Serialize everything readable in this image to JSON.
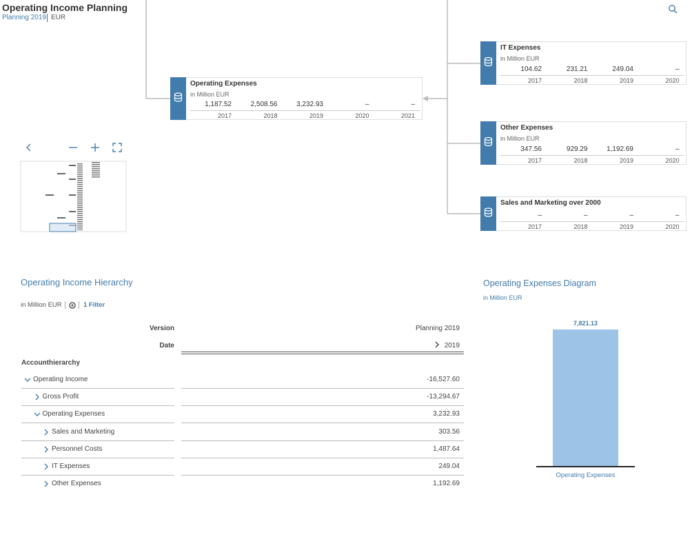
{
  "header": {
    "title": "Operating Income Planning",
    "version": "Planning 2019",
    "currency": "EUR"
  },
  "nodes": [
    {
      "title": "Operating Expenses",
      "unit": "in Million EUR",
      "values": [
        "1,187.52",
        "2,508.56",
        "3,232.93",
        "–",
        "–"
      ],
      "years": [
        "2017",
        "2018",
        "2019",
        "2020",
        "2021"
      ]
    },
    {
      "title": "IT Expenses",
      "unit": "in Million EUR",
      "values": [
        "104.62",
        "231.21",
        "249.04",
        "–"
      ],
      "years": [
        "2017",
        "2018",
        "2019",
        "2020"
      ]
    },
    {
      "title": "Other Expenses",
      "unit": "in Million EUR",
      "values": [
        "347.56",
        "929.29",
        "1,192.69",
        "–"
      ],
      "years": [
        "2017",
        "2018",
        "2019",
        "2020"
      ]
    },
    {
      "title": "Sales and Marketing over 2000",
      "values": [
        "–",
        "–",
        "–",
        "–"
      ],
      "years": [
        "2017",
        "2018",
        "2019",
        "2020"
      ]
    }
  ],
  "table": {
    "title": "Operating Income Hierarchy",
    "unit": "in Million EUR",
    "filter": "1 Filter",
    "header_rows": [
      [
        "Version",
        "Planning 2019"
      ],
      [
        "Date",
        "2019"
      ]
    ],
    "dimension": "Accounthierarchy",
    "rows": [
      {
        "label": "Operating Income",
        "value": "-16,527.60",
        "level": 0,
        "expanded": true
      },
      {
        "label": "Gross Profit",
        "value": "-13,294.67",
        "level": 1,
        "expanded": false
      },
      {
        "label": "Operating Expenses",
        "value": "3,232.93",
        "level": 1,
        "expanded": true
      },
      {
        "label": "Sales and Marketing",
        "value": "303.56",
        "level": 2,
        "expanded": false
      },
      {
        "label": "Personnel Costs",
        "value": "1,487.64",
        "level": 2,
        "expanded": false
      },
      {
        "label": "IT Expenses",
        "value": "249.04",
        "level": 2,
        "expanded": false
      },
      {
        "label": "Other Expenses",
        "value": "1,192.69",
        "level": 2,
        "expanded": false
      }
    ]
  },
  "chart": {
    "type": "bar",
    "title": "Operating Expenses Diagram",
    "subtitle": "in Million EUR",
    "categories": [
      "Operating Expenses"
    ],
    "values": [
      7821.13
    ],
    "value_labels": [
      "7,821.13"
    ],
    "color": "#9dc3e6"
  }
}
